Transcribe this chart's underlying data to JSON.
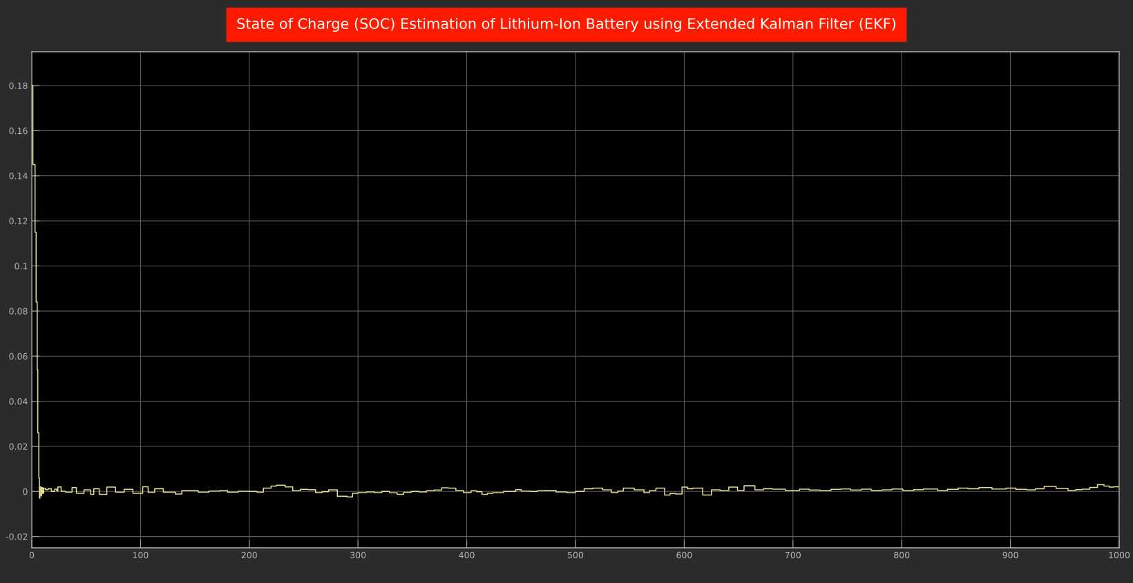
{
  "chart_data": {
    "type": "step",
    "title": "State of Charge (SOC) Estimation of Lithium-Ion Battery using Extended Kalman Filter (EKF)",
    "x": [
      0,
      1,
      3,
      4,
      5,
      5.5,
      6.5,
      7,
      7.5,
      8.5,
      9,
      10,
      11,
      12.6,
      15,
      18,
      21,
      23,
      24,
      27,
      31,
      37,
      41,
      48,
      54,
      57,
      62,
      69,
      77,
      85,
      93,
      102,
      107,
      113,
      121,
      132,
      138,
      153,
      163,
      173,
      180,
      190,
      200,
      207,
      213,
      220,
      225,
      233,
      240,
      247,
      254,
      261,
      267,
      273,
      281,
      290,
      295,
      300,
      308,
      315,
      322,
      329,
      336,
      342,
      349,
      356,
      363,
      370,
      377,
      383,
      390,
      397,
      404,
      409,
      414,
      419,
      424,
      434,
      445,
      450,
      458,
      465,
      472,
      482,
      492,
      500,
      508,
      516,
      525,
      533,
      539,
      544,
      554,
      563,
      568,
      574,
      582,
      587,
      592,
      598,
      603,
      608,
      617,
      625,
      633,
      641,
      649,
      655,
      665,
      673,
      681,
      693,
      706,
      715,
      725,
      735,
      744,
      753,
      763,
      772,
      782,
      791,
      801,
      811,
      820,
      833,
      842,
      852,
      861,
      871,
      883,
      896,
      905,
      915,
      923,
      931,
      942,
      953,
      960,
      966,
      973,
      980,
      986,
      991,
      995,
      1000
    ],
    "series": [
      {
        "color": "#e6df8a",
        "values": [
          0.18,
          0.145,
          0.115,
          0.084,
          0.054,
          0.026,
          0.006,
          -0.003,
          0.002,
          -0.002,
          0.0017,
          -0.0008,
          0.0015,
          0.0008,
          0.0012,
          0,
          0.001,
          0.0002,
          0.002,
          0.0001,
          -0.0003,
          0.0017,
          -0.0008,
          0.0007,
          -0.0013,
          0.0012,
          -0.0013,
          0.0019,
          -0.0003,
          0.0009,
          -0.0008,
          0.0021,
          -0.0004,
          0.0012,
          -0.0003,
          -0.0011,
          0.0004,
          -0.0003,
          0.0002,
          0.0004,
          -0.0003,
          0.0001,
          0,
          -0.0003,
          0.0015,
          0.0024,
          0.0028,
          0.002,
          0.0003,
          0.0009,
          0.0008,
          -0.0005,
          -0.0001,
          0.0007,
          -0.0021,
          -0.0024,
          -0.0008,
          -0.0005,
          -0.0002,
          -0.0005,
          0,
          -0.0006,
          -0.0013,
          -0.0004,
          0,
          -0.0002,
          0.0003,
          0.0006,
          0.0016,
          0.0015,
          0.0004,
          -0.0005,
          0.0003,
          -0.0001,
          -0.0013,
          -0.0008,
          -0.0005,
          0,
          0.0008,
          0.0002,
          0,
          0.0003,
          0.0005,
          -0.0002,
          -0.0005,
          0,
          0.0012,
          0.0015,
          0.0007,
          -0.0005,
          0.0002,
          0.0015,
          0.0007,
          -0.0005,
          0.0003,
          0.0015,
          -0.0016,
          -0.0009,
          -0.0011,
          0.0019,
          0.0012,
          0.0015,
          -0.0016,
          0.0007,
          0.0004,
          0.0019,
          0.0004,
          0.0025,
          0.0007,
          0.0012,
          0.001,
          0.0004,
          0.001,
          0.0006,
          0.0004,
          0.0009,
          0.0011,
          0.0006,
          0.001,
          0.0005,
          0.0007,
          0.0011,
          0.0004,
          0.0008,
          0.0011,
          0.0004,
          0.0009,
          0.0015,
          0.0012,
          0.0017,
          0.0011,
          0.0015,
          0.0009,
          0.0007,
          0.0012,
          0.0022,
          0.0013,
          0.0004,
          0.0008,
          0.001,
          0.0018,
          0.003,
          0.0024,
          0.0019,
          0.0021,
          0.0015
        ]
      }
    ],
    "xlim": [
      0,
      1000
    ],
    "ylim": [
      -0.025,
      0.195
    ],
    "xticks": [
      0,
      100,
      200,
      300,
      400,
      500,
      600,
      700,
      800,
      900,
      1000
    ],
    "yticks": [
      -0.02,
      0,
      0.02,
      0.04,
      0.06,
      0.08,
      0.1,
      0.12,
      0.14,
      0.16,
      0.18
    ],
    "grid": true
  }
}
